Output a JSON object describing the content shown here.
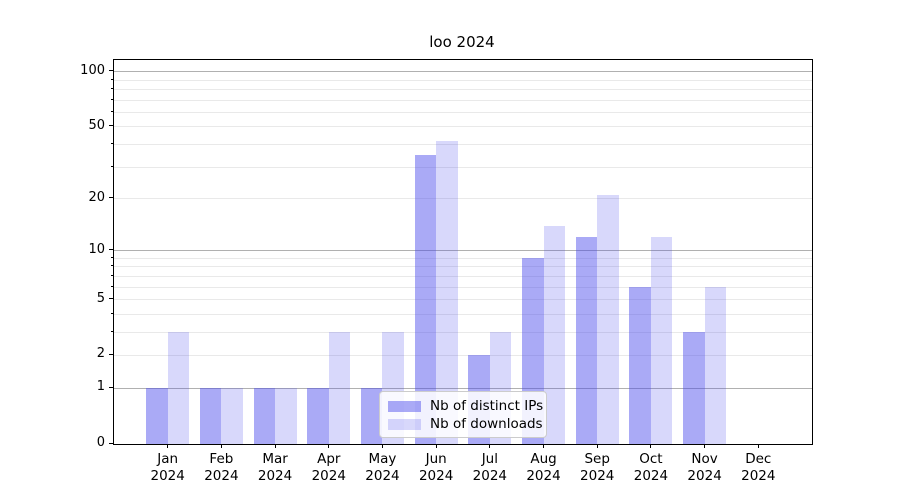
{
  "chart_data": {
    "type": "bar",
    "title": "loo 2024",
    "categories": [
      "Jan 2024",
      "Feb 2024",
      "Mar 2024",
      "Apr 2024",
      "May 2024",
      "Jun 2024",
      "Jul 2024",
      "Aug 2024",
      "Sep 2024",
      "Oct 2024",
      "Nov 2024",
      "Dec 2024"
    ],
    "x_tick_line1": [
      "Jan",
      "Feb",
      "Mar",
      "Apr",
      "May",
      "Jun",
      "Jul",
      "Aug",
      "Sep",
      "Oct",
      "Nov",
      "Dec"
    ],
    "x_tick_line2": "2024",
    "series": [
      {
        "name": "Nb of distinct IPs",
        "color": "rgba(70,70,235,0.46)",
        "values": [
          1,
          1,
          1,
          1,
          1,
          35,
          2,
          9,
          12,
          6,
          3,
          0
        ]
      },
      {
        "name": "Nb of downloads",
        "color": "rgba(70,70,235,0.21)",
        "values": [
          3,
          1,
          1,
          3,
          3,
          42,
          3,
          14,
          21,
          12,
          6,
          0
        ]
      }
    ],
    "y_axis": {
      "scale": "log1p",
      "tick_labels": [
        0,
        1,
        2,
        5,
        10,
        20,
        50,
        100
      ],
      "major_gridlines": [
        1,
        10,
        100
      ],
      "minor_gridlines": [
        2,
        3,
        4,
        5,
        6,
        7,
        8,
        9,
        20,
        30,
        40,
        50,
        60,
        70,
        80,
        90
      ],
      "axis_max": 116,
      "ylim": [
        0,
        116
      ]
    },
    "legend": {
      "position": "inside-lower-center"
    },
    "layout_hints": {
      "grid": "on",
      "bar_group_width": 0.8
    },
    "colors": {
      "major_grid": "#b0b0b0",
      "minor_grid": "#e9e9e9",
      "spine": "#000000",
      "background": "#ffffff",
      "bar_base": "#4646eb"
    }
  }
}
